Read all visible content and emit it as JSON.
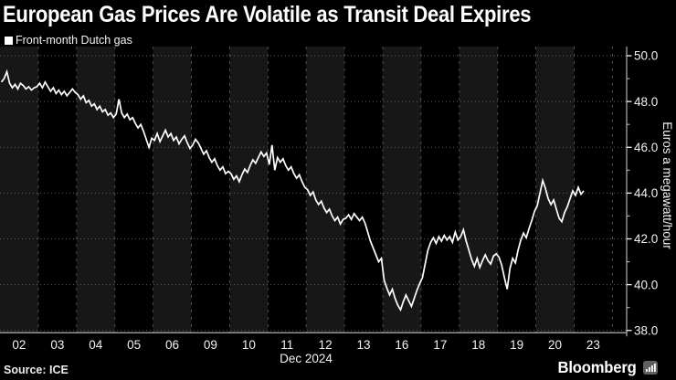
{
  "title": "European Gas Prices Are Volatile as Transit Deal Expires",
  "legend": {
    "marker": "white-square",
    "label": "Front-month Dutch gas"
  },
  "source_label": "Source: ICE",
  "brand": {
    "wordmark": "Bloomberg",
    "icon": "bar-chart-icon"
  },
  "colors": {
    "background": "#000000",
    "band_light": "#171717",
    "band_dark": "#000000",
    "day_separator": "#4d4d4d",
    "gridline": "#5f5f5f",
    "axis": "#b3b3b3",
    "tick_text": "#f2f2f2",
    "price_line": "#ffffff",
    "brand_icon_bg": "#606060"
  },
  "chart_data": {
    "type": "line",
    "title": "European Gas Prices Are Volatile as Transit Deal Expires",
    "xlabel": "Dec 2024",
    "ylabel": "Euros a megawatt/hour",
    "ylim": [
      37.9,
      50.4
    ],
    "ytick_values": [
      50,
      48,
      46,
      44,
      42,
      40,
      38
    ],
    "ytick_labels": [
      "50.0",
      "48.0",
      "46.0",
      "44.0",
      "42.0",
      "40.0",
      "38.0"
    ],
    "yminor_values": [
      49,
      47,
      45,
      43,
      41,
      39
    ],
    "grid": "dotted-horizontal-on",
    "legend_position": "top-left",
    "categories": [
      "02",
      "03",
      "04",
      "05",
      "06",
      "09",
      "10",
      "11",
      "12",
      "13",
      "16",
      "17",
      "18",
      "19",
      "20",
      "23"
    ],
    "points_per_day": 14,
    "series": [
      {
        "name": "Front-month Dutch gas",
        "values_by_day": [
          [
            48.85,
            49.0,
            49.3,
            48.8,
            48.6,
            48.75,
            48.55,
            48.8,
            48.7,
            48.55,
            48.65,
            48.5,
            48.6,
            48.65
          ],
          [
            48.8,
            48.6,
            48.85,
            48.65,
            48.45,
            48.6,
            48.35,
            48.5,
            48.3,
            48.45,
            48.25,
            48.4,
            48.55,
            48.4
          ],
          [
            48.3,
            48.1,
            48.25,
            47.95,
            48.05,
            47.8,
            47.9,
            47.65,
            47.8,
            47.55,
            47.65,
            47.4,
            47.5,
            47.3
          ],
          [
            47.45,
            48.1,
            47.5,
            47.3,
            47.45,
            47.2,
            47.3,
            47.05,
            46.85,
            47.0,
            46.7,
            46.35,
            46.0,
            46.4
          ],
          [
            46.3,
            46.6,
            46.25,
            46.5,
            46.75,
            46.45,
            46.6,
            46.3,
            46.45,
            46.15,
            46.35,
            46.5,
            46.2,
            45.95
          ],
          [
            46.1,
            46.35,
            46.2,
            45.95,
            45.7,
            45.85,
            45.55,
            45.35,
            45.5,
            45.2,
            45.0,
            45.15,
            44.85,
            44.95
          ],
          [
            44.85,
            44.6,
            44.75,
            44.5,
            44.8,
            45.05,
            44.9,
            45.2,
            45.45,
            45.3,
            45.55,
            45.8,
            45.6,
            45.75
          ],
          [
            45.25,
            46.1,
            45.0,
            45.55,
            45.35,
            45.5,
            45.2,
            45.0,
            45.15,
            44.85,
            44.65,
            44.8,
            44.5,
            44.25
          ],
          [
            44.15,
            43.9,
            44.05,
            43.7,
            43.5,
            43.65,
            43.35,
            43.15,
            43.3,
            43.0,
            42.8,
            42.95,
            42.65,
            42.85
          ],
          [
            42.9,
            43.05,
            42.85,
            43.1,
            42.95,
            42.8,
            42.95,
            42.7,
            42.3,
            41.9,
            41.6,
            41.3,
            41.0,
            41.15
          ],
          [
            40.2,
            39.85,
            39.55,
            39.8,
            39.4,
            39.1,
            38.9,
            39.25,
            39.55,
            39.3,
            39.05,
            39.4,
            39.75,
            40.05
          ],
          [
            40.3,
            40.9,
            41.5,
            41.85,
            42.05,
            41.8,
            42.1,
            41.9,
            42.15,
            41.95,
            42.1,
            41.85,
            42.3,
            41.95
          ],
          [
            42.1,
            42.4,
            41.9,
            41.5,
            41.1,
            40.8,
            41.15,
            40.75,
            41.05,
            41.3,
            41.05,
            40.9,
            41.25,
            41.35
          ],
          [
            41.2,
            40.85,
            40.3,
            39.8,
            40.7,
            41.15,
            40.95,
            41.5,
            41.95,
            42.25,
            42.05,
            42.45,
            42.8,
            43.2
          ],
          [
            43.45,
            44.0,
            44.55,
            44.2,
            43.75,
            43.5,
            43.7,
            43.3,
            42.9,
            42.75,
            43.15,
            43.4,
            43.75,
            44.1
          ],
          [
            43.9,
            44.25,
            43.95,
            44.1
          ]
        ]
      }
    ]
  }
}
